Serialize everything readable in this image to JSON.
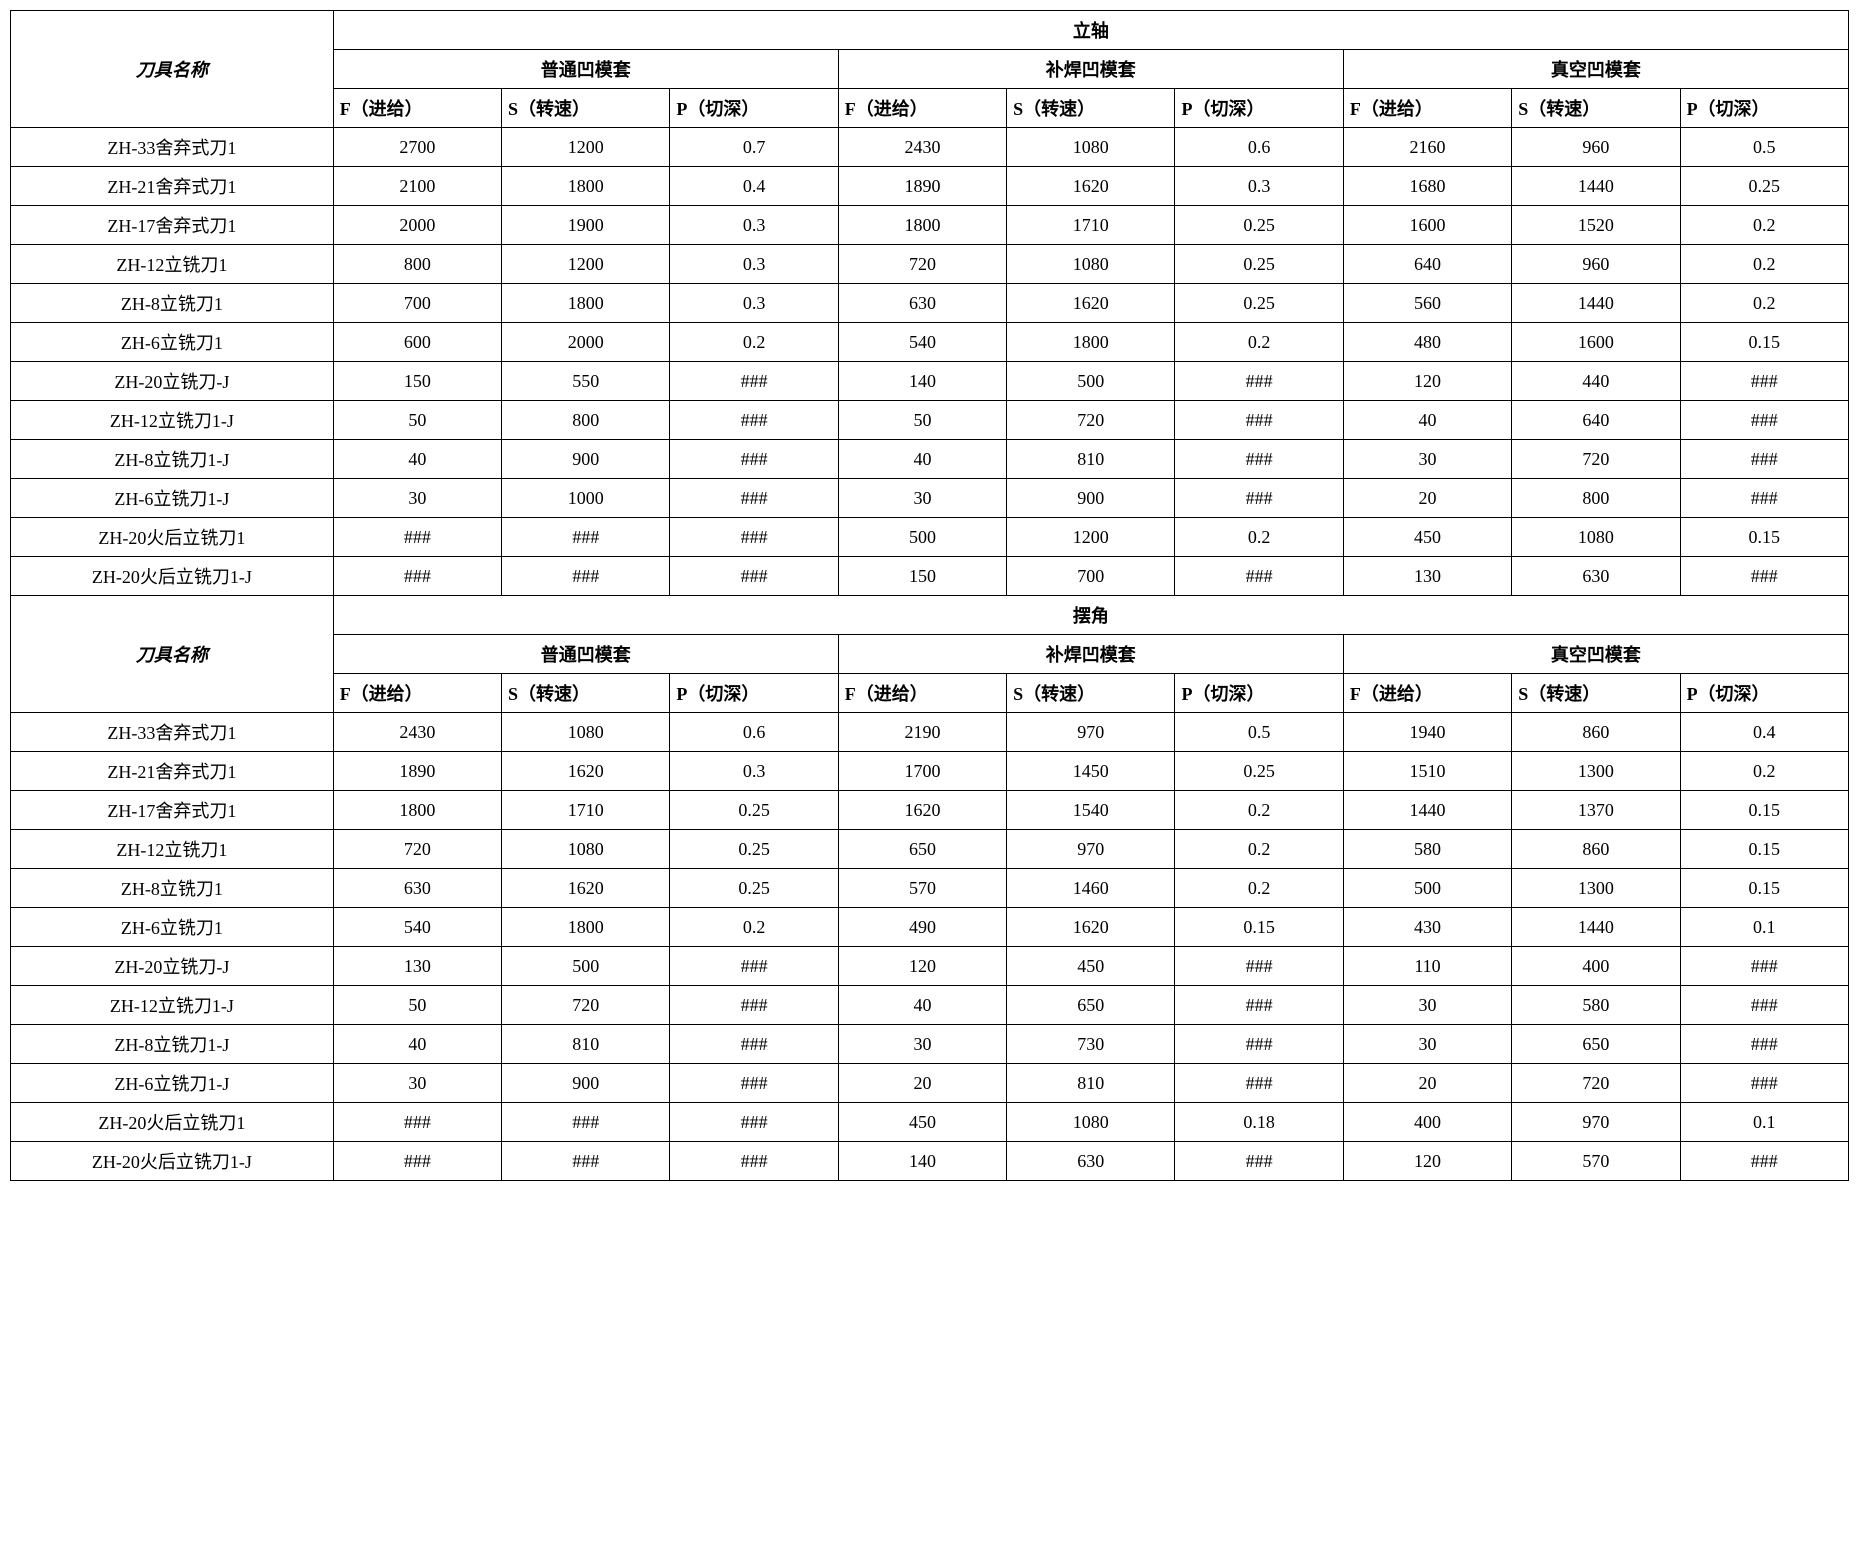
{
  "table": {
    "toolNameHeader": "刀具名称",
    "sections": [
      {
        "title": "立轴",
        "groups": [
          "普通凹模套",
          "补焊凹模套",
          "真空凹模套"
        ],
        "colHeaders": [
          "F（进给）",
          "S（转速）",
          "P（切深）"
        ],
        "rows": [
          {
            "name": "ZH-33舍弃式刀1",
            "values": [
              "2700",
              "1200",
              "0.7",
              "2430",
              "1080",
              "0.6",
              "2160",
              "960",
              "0.5"
            ]
          },
          {
            "name": "ZH-21舍弃式刀1",
            "values": [
              "2100",
              "1800",
              "0.4",
              "1890",
              "1620",
              "0.3",
              "1680",
              "1440",
              "0.25"
            ]
          },
          {
            "name": "ZH-17舍弃式刀1",
            "values": [
              "2000",
              "1900",
              "0.3",
              "1800",
              "1710",
              "0.25",
              "1600",
              "1520",
              "0.2"
            ]
          },
          {
            "name": "ZH-12立铣刀1",
            "values": [
              "800",
              "1200",
              "0.3",
              "720",
              "1080",
              "0.25",
              "640",
              "960",
              "0.2"
            ]
          },
          {
            "name": "ZH-8立铣刀1",
            "values": [
              "700",
              "1800",
              "0.3",
              "630",
              "1620",
              "0.25",
              "560",
              "1440",
              "0.2"
            ]
          },
          {
            "name": "ZH-6立铣刀1",
            "values": [
              "600",
              "2000",
              "0.2",
              "540",
              "1800",
              "0.2",
              "480",
              "1600",
              "0.15"
            ]
          },
          {
            "name": "ZH-20立铣刀-J",
            "values": [
              "150",
              "550",
              "###",
              "140",
              "500",
              "###",
              "120",
              "440",
              "###"
            ]
          },
          {
            "name": "ZH-12立铣刀1-J",
            "values": [
              "50",
              "800",
              "###",
              "50",
              "720",
              "###",
              "40",
              "640",
              "###"
            ]
          },
          {
            "name": "ZH-8立铣刀1-J",
            "values": [
              "40",
              "900",
              "###",
              "40",
              "810",
              "###",
              "30",
              "720",
              "###"
            ]
          },
          {
            "name": "ZH-6立铣刀1-J",
            "values": [
              "30",
              "1000",
              "###",
              "30",
              "900",
              "###",
              "20",
              "800",
              "###"
            ]
          },
          {
            "name": "ZH-20火后立铣刀1",
            "values": [
              "###",
              "###",
              "###",
              "500",
              "1200",
              "0.2",
              "450",
              "1080",
              "0.15"
            ]
          },
          {
            "name": "ZH-20火后立铣刀1-J",
            "values": [
              "###",
              "###",
              "###",
              "150",
              "700",
              "###",
              "130",
              "630",
              "###"
            ]
          }
        ]
      },
      {
        "title": "摆角",
        "groups": [
          "普通凹模套",
          "补焊凹模套",
          "真空凹模套"
        ],
        "colHeaders": [
          "F（进给）",
          "S（转速）",
          "P（切深）"
        ],
        "rows": [
          {
            "name": "ZH-33舍弃式刀1",
            "values": [
              "2430",
              "1080",
              "0.6",
              "2190",
              "970",
              "0.5",
              "1940",
              "860",
              "0.4"
            ]
          },
          {
            "name": "ZH-21舍弃式刀1",
            "values": [
              "1890",
              "1620",
              "0.3",
              "1700",
              "1450",
              "0.25",
              "1510",
              "1300",
              "0.2"
            ]
          },
          {
            "name": "ZH-17舍弃式刀1",
            "values": [
              "1800",
              "1710",
              "0.25",
              "1620",
              "1540",
              "0.2",
              "1440",
              "1370",
              "0.15"
            ]
          },
          {
            "name": "ZH-12立铣刀1",
            "values": [
              "720",
              "1080",
              "0.25",
              "650",
              "970",
              "0.2",
              "580",
              "860",
              "0.15"
            ]
          },
          {
            "name": "ZH-8立铣刀1",
            "values": [
              "630",
              "1620",
              "0.25",
              "570",
              "1460",
              "0.2",
              "500",
              "1300",
              "0.15"
            ]
          },
          {
            "name": "ZH-6立铣刀1",
            "values": [
              "540",
              "1800",
              "0.2",
              "490",
              "1620",
              "0.15",
              "430",
              "1440",
              "0.1"
            ]
          },
          {
            "name": "ZH-20立铣刀-J",
            "values": [
              "130",
              "500",
              "###",
              "120",
              "450",
              "###",
              "110",
              "400",
              "###"
            ]
          },
          {
            "name": "ZH-12立铣刀1-J",
            "values": [
              "50",
              "720",
              "###",
              "40",
              "650",
              "###",
              "30",
              "580",
              "###"
            ]
          },
          {
            "name": "ZH-8立铣刀1-J",
            "values": [
              "40",
              "810",
              "###",
              "30",
              "730",
              "###",
              "30",
              "650",
              "###"
            ]
          },
          {
            "name": "ZH-6立铣刀1-J",
            "values": [
              "30",
              "900",
              "###",
              "20",
              "810",
              "###",
              "20",
              "720",
              "###"
            ]
          },
          {
            "name": "ZH-20火后立铣刀1",
            "values": [
              "###",
              "###",
              "###",
              "450",
              "1080",
              "0.18",
              "400",
              "970",
              "0.1"
            ]
          },
          {
            "name": "ZH-20火后立铣刀1-J",
            "values": [
              "###",
              "###",
              "###",
              "140",
              "630",
              "###",
              "120",
              "570",
              "###"
            ]
          }
        ]
      }
    ],
    "styling": {
      "border_color": "#000000",
      "background_color": "#ffffff",
      "font_family": "SimSun",
      "cell_fontsize": 18,
      "header_fontweight": "bold",
      "header_fontstyle": "italic"
    }
  }
}
